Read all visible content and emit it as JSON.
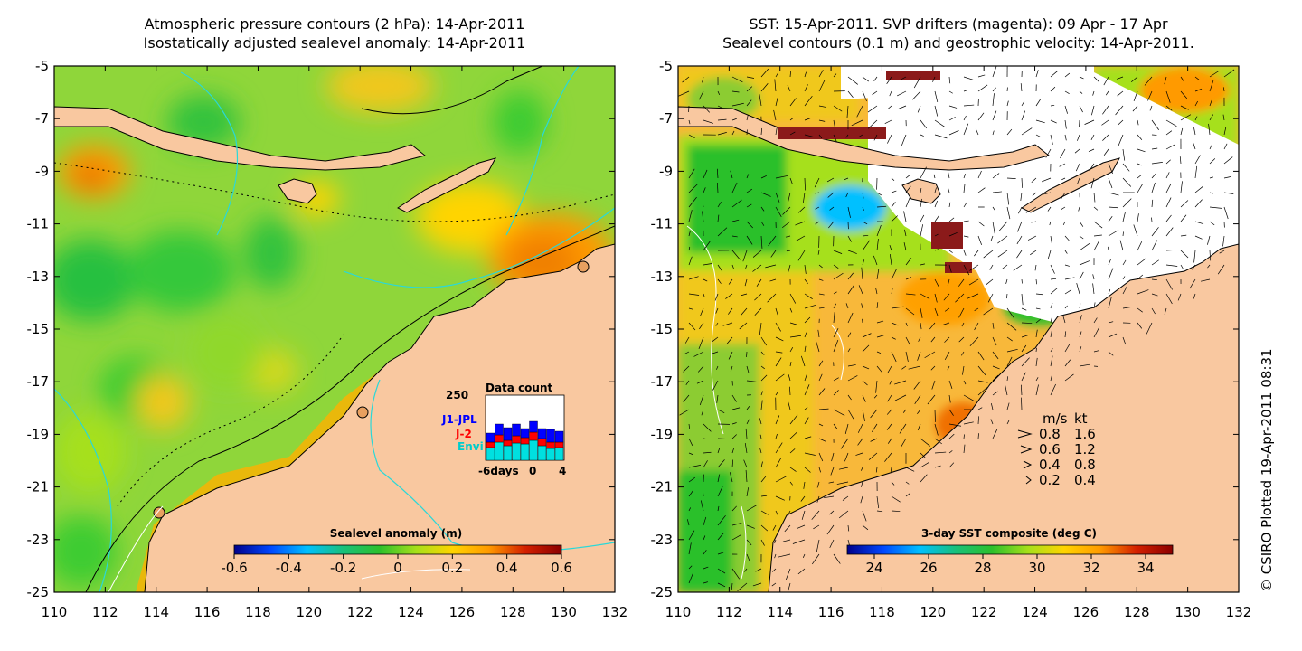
{
  "left_panel": {
    "title_line1": "Atmospheric pressure contours (2 hPa): 14-Apr-2011",
    "title_line2": "Isostatically adjusted sealevel anomaly: 14-Apr-2011",
    "colorbar": {
      "label": "Sealevel anomaly (m)",
      "ticks": [
        "-0.6",
        "-0.4",
        "-0.2",
        "0",
        "0.2",
        "0.4",
        "0.6"
      ],
      "range": [
        -0.6,
        0.6
      ],
      "colors": [
        "#00008b",
        "#0047ff",
        "#00c0ff",
        "#19c07a",
        "#2cc02c",
        "#a6e01a",
        "#ffd400",
        "#ff9a00",
        "#d42000",
        "#8b0000"
      ]
    },
    "data_count": {
      "title": "Data count",
      "ymax_label": "250",
      "x_labels": [
        "-6days",
        "0",
        "4"
      ],
      "series_labels": [
        "J1-JPL",
        "J-2",
        "Envi"
      ],
      "series_colors": [
        "#0000ff",
        "#ff0000",
        "#00e0e0"
      ]
    }
  },
  "right_panel": {
    "title_line1": "SST: 15-Apr-2011. SVP drifters (magenta): 09 Apr - 17 Apr",
    "title_line2": "Sealevel contours (0.1 m) and geostrophic velocity: 14-Apr-2011.",
    "colorbar": {
      "label": "3-day SST composite (deg C)",
      "ticks": [
        "24",
        "26",
        "28",
        "30",
        "32",
        "34"
      ],
      "range": [
        23,
        35
      ],
      "colors": [
        "#00008b",
        "#0047ff",
        "#00c0ff",
        "#19c07a",
        "#2cc02c",
        "#a6e01a",
        "#ffd400",
        "#ff9a00",
        "#d42000",
        "#8b0000"
      ]
    },
    "velocity_legend": {
      "header_ms": "m/s",
      "header_kt": "kt",
      "rows": [
        {
          "ms": "0.8",
          "kt": "1.6"
        },
        {
          "ms": "0.6",
          "kt": "1.2"
        },
        {
          "ms": "0.4",
          "kt": "0.8"
        },
        {
          "ms": "0.2",
          "kt": "0.4"
        }
      ]
    }
  },
  "axes": {
    "x_ticks": [
      "110",
      "112",
      "114",
      "116",
      "118",
      "120",
      "122",
      "124",
      "126",
      "128",
      "130",
      "132"
    ],
    "y_ticks": [
      "-5",
      "-7",
      "-9",
      "-11",
      "-13",
      "-15",
      "-17",
      "-19",
      "-21",
      "-23",
      "-25"
    ],
    "lon_range": [
      110,
      132
    ],
    "lat_range": [
      -25,
      -5
    ]
  },
  "colors": {
    "land": "#f9c8a0",
    "coast": "#000000",
    "sealevel_contour": "#2ad8d8",
    "sst_contour": "#ffffff",
    "data_gap": "#ffffff",
    "cloud_flag": "#8b1a1a",
    "vector": "#000000"
  },
  "credit": "© CSIRO Plotted 19-Apr-2011 08:31"
}
